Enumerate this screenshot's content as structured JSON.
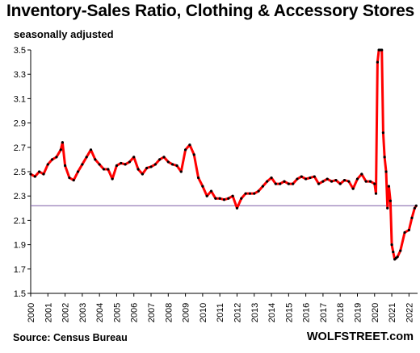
{
  "chart_data": {
    "type": "line",
    "title": "Inventory-Sales Ratio, Clothing & Accessory Stores",
    "subtitle": "seasonally adjusted",
    "source": "Source: Census Bureau",
    "brand": "WOLFSTREET.com",
    "xlabel": "",
    "ylabel": "",
    "ylim": [
      1.5,
      3.5
    ],
    "xlim": [
      2000,
      2022.5
    ],
    "grid": false,
    "legend": "none",
    "y_ticks": [
      "1.5",
      "1.7",
      "1.9",
      "2.1",
      "2.3",
      "2.5",
      "2.7",
      "2.9",
      "3.1",
      "3.3",
      "3.5"
    ],
    "x_ticks": [
      "2000",
      "2001",
      "2002",
      "2003",
      "2004",
      "2005",
      "2006",
      "2007",
      "2008",
      "2009",
      "2010",
      "2011",
      "2012",
      "2013",
      "2014",
      "2015",
      "2016",
      "2017",
      "2018",
      "2019",
      "2020",
      "2021",
      "2022"
    ],
    "reference_line": {
      "y": 2.22,
      "color": "#7b5aa6"
    },
    "line_color": "#ff0000",
    "marker_color": "#000000",
    "series": [
      {
        "x": [
          2000.0,
          2000.25,
          2000.5,
          2000.75,
          2001.0,
          2001.25,
          2001.5,
          2001.75,
          2001.85,
          2002.0,
          2002.25,
          2002.5,
          2002.75,
          2003.0,
          2003.25,
          2003.5,
          2003.75,
          2004.0,
          2004.25,
          2004.5,
          2004.75,
          2005.0,
          2005.25,
          2005.5,
          2005.75,
          2006.0,
          2006.25,
          2006.5,
          2006.75,
          2007.0,
          2007.25,
          2007.5,
          2007.75,
          2008.0,
          2008.25,
          2008.5,
          2008.75,
          2009.0,
          2009.25,
          2009.5,
          2009.75,
          2010.0,
          2010.25,
          2010.5,
          2010.75,
          2011.0,
          2011.25,
          2011.5,
          2011.75,
          2012.0,
          2012.25,
          2012.5,
          2012.75,
          2013.0,
          2013.25,
          2013.5,
          2013.75,
          2014.0,
          2014.25,
          2014.5,
          2014.75,
          2015.0,
          2015.25,
          2015.5,
          2015.75,
          2016.0,
          2016.25,
          2016.5,
          2016.75,
          2017.0,
          2017.25,
          2017.5,
          2017.75,
          2018.0,
          2018.25,
          2018.5,
          2018.75,
          2019.0,
          2019.25,
          2019.5,
          2019.75,
          2020.0,
          2020.08,
          2020.17,
          2020.25,
          2020.33,
          2020.42,
          2020.5,
          2020.58,
          2020.67,
          2020.75,
          2020.83,
          2020.92,
          2021.0,
          2021.08,
          2021.17,
          2021.25,
          2021.33,
          2021.5,
          2021.75,
          2022.0,
          2022.17,
          2022.33,
          2022.42
        ],
        "y": [
          2.48,
          2.46,
          2.5,
          2.48,
          2.56,
          2.6,
          2.62,
          2.68,
          2.74,
          2.55,
          2.45,
          2.43,
          2.5,
          2.56,
          2.62,
          2.68,
          2.6,
          2.56,
          2.52,
          2.52,
          2.44,
          2.55,
          2.57,
          2.56,
          2.58,
          2.62,
          2.52,
          2.48,
          2.53,
          2.54,
          2.56,
          2.6,
          2.62,
          2.58,
          2.56,
          2.55,
          2.5,
          2.68,
          2.72,
          2.64,
          2.45,
          2.38,
          2.3,
          2.34,
          2.28,
          2.28,
          2.27,
          2.28,
          2.3,
          2.2,
          2.28,
          2.32,
          2.32,
          2.32,
          2.34,
          2.38,
          2.42,
          2.45,
          2.4,
          2.4,
          2.42,
          2.4,
          2.4,
          2.44,
          2.46,
          2.44,
          2.45,
          2.46,
          2.4,
          2.42,
          2.44,
          2.42,
          2.43,
          2.4,
          2.43,
          2.42,
          2.36,
          2.44,
          2.48,
          2.42,
          2.42,
          2.4,
          2.32,
          3.4,
          3.5,
          3.5,
          3.5,
          2.82,
          2.62,
          2.5,
          2.2,
          2.38,
          2.26,
          1.9,
          1.84,
          1.78,
          1.79,
          1.8,
          1.85,
          2.0,
          2.02,
          2.12,
          2.2,
          2.22
        ]
      }
    ]
  }
}
